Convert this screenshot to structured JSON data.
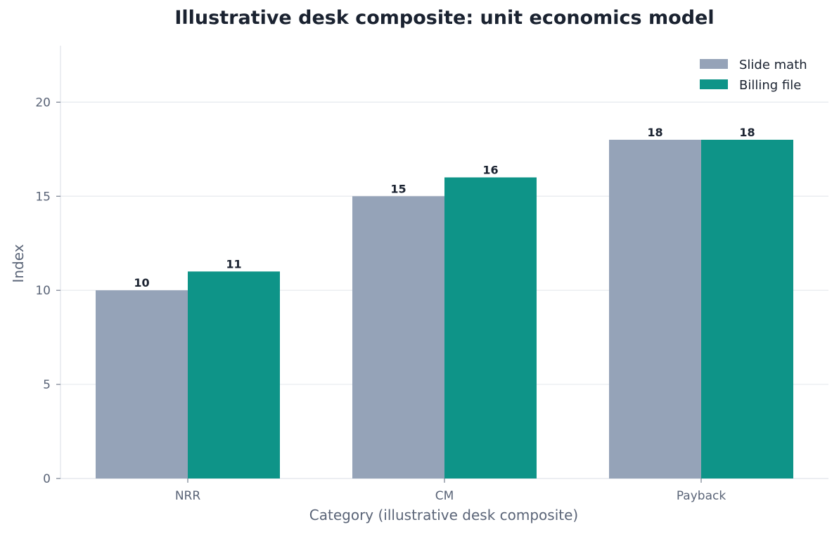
{
  "chart_data": {
    "type": "bar",
    "title": "Illustrative desk composite: unit economics model",
    "xlabel": "Category (illustrative desk composite)",
    "ylabel": "Index",
    "categories": [
      "NRR",
      "CM",
      "Payback"
    ],
    "series": [
      {
        "name": "Slide math",
        "values": [
          10,
          15,
          18
        ],
        "color": "#95a3b8"
      },
      {
        "name": "Billing file",
        "values": [
          11,
          16,
          18
        ],
        "color": "#0e9488"
      }
    ],
    "ylim": [
      0,
      23
    ],
    "yticks": [
      0,
      5,
      10,
      15,
      20
    ],
    "grid": "horizontal",
    "legend": "top-right"
  }
}
